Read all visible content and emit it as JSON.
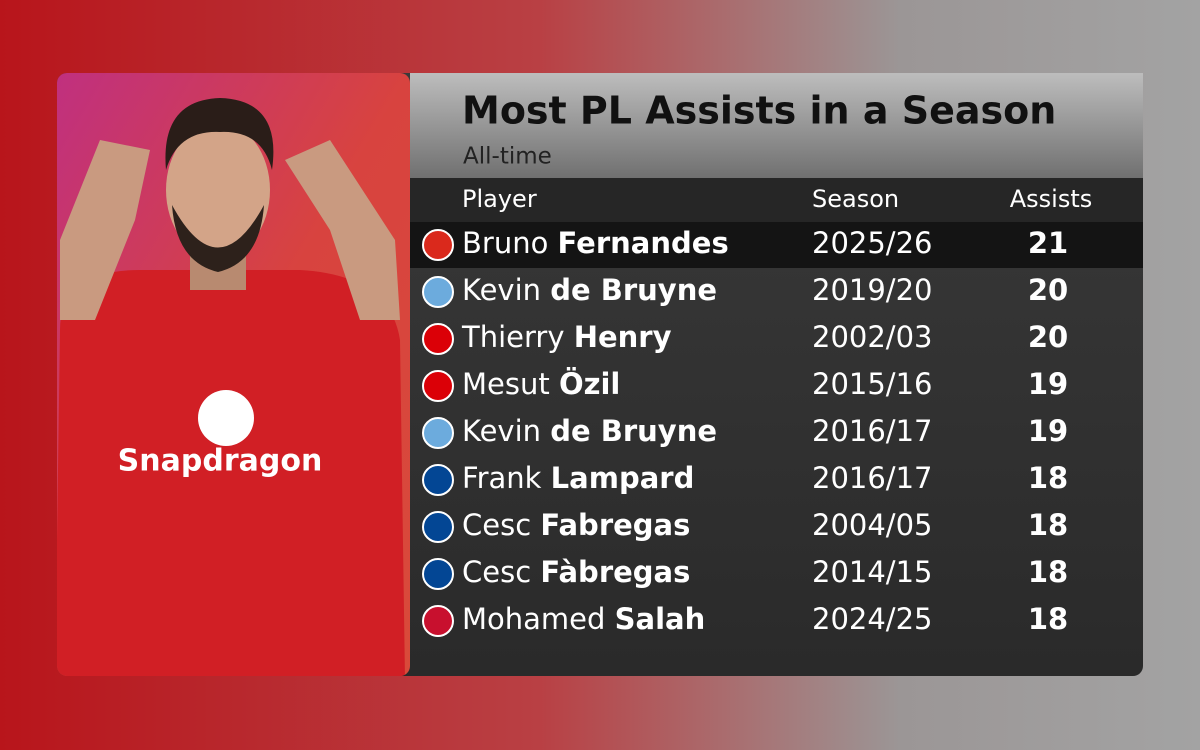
{
  "header": {
    "title": "Most PL Assists in a Season",
    "subtitle": "All-time"
  },
  "player_image": {
    "sponsor": "Snapdragon"
  },
  "table": {
    "columns": [
      "Player",
      "Season",
      "Assists"
    ],
    "rows": [
      {
        "first_name": "Bruno",
        "last_name": "Fernandes",
        "season": "2025/26",
        "assists": 21
      },
      {
        "first_name": "Kevin",
        "last_name": "de Bruyne",
        "season": "2019/20",
        "assists": 20
      },
      {
        "first_name": "Thierry",
        "last_name": "Henry",
        "season": "2002/03",
        "assists": 20
      },
      {
        "first_name": "Mesut",
        "last_name": "Özil",
        "season": "2015/16",
        "assists": 19
      },
      {
        "first_name": "Kevin",
        "last_name": "de Bruyne",
        "season": "2016/17",
        "assists": 19
      },
      {
        "first_name": "Frank",
        "last_name": "Lampard",
        "season": "2016/17",
        "assists": 18
      },
      {
        "first_name": "Cesc",
        "last_name": "Fabregas",
        "season": "2004/05",
        "assists": 18
      },
      {
        "first_name": "Cesc",
        "last_name": "Fàbregas",
        "season": "2014/15",
        "assists": 18
      },
      {
        "first_name": "Mohamed",
        "last_name": "Salah",
        "season": "2024/25",
        "assists": 18
      }
    ]
  }
}
